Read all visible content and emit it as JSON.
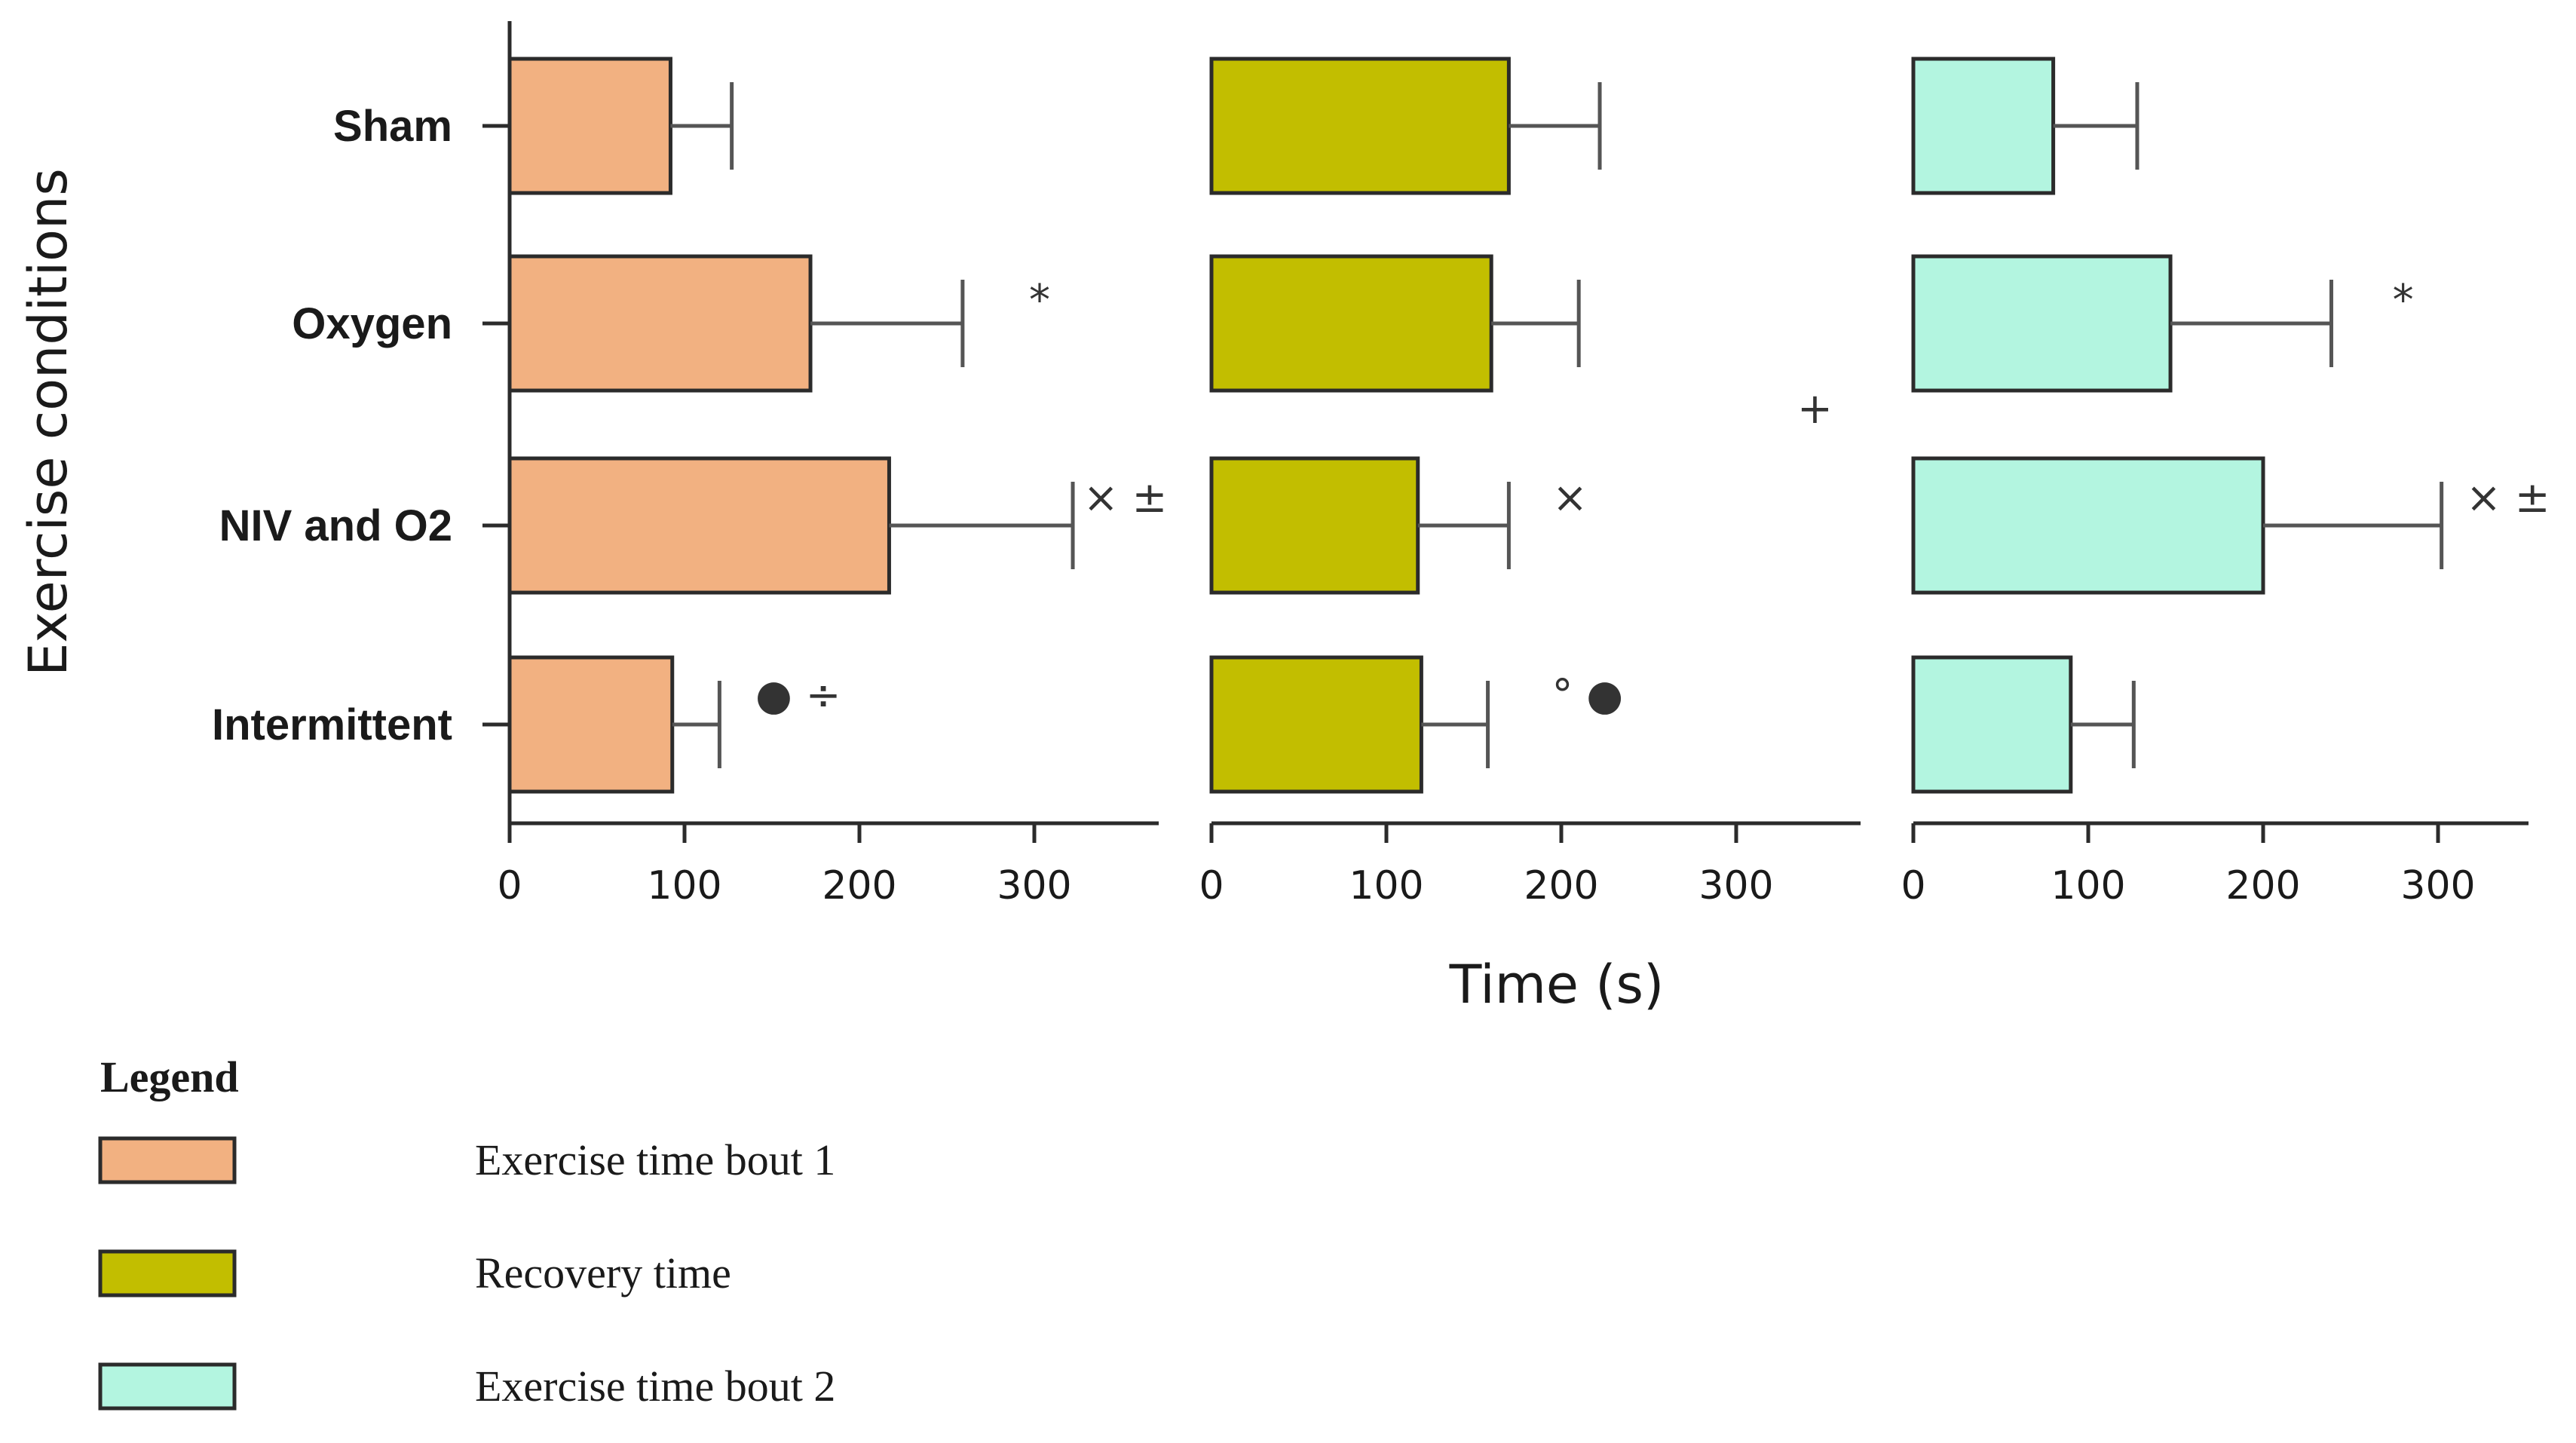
{
  "chart_data": {
    "type": "bar",
    "orientation": "horizontal",
    "categories": [
      "Sham",
      "Oxygen",
      "NIV and O2",
      "Intermittent"
    ],
    "ylabel": "Exercise conditions",
    "xlabel": "Time (s)",
    "xlim": [
      0,
      370
    ],
    "xticks": [
      0,
      100,
      200,
      300
    ],
    "legend_title": "Legend",
    "legend_position": "bottom-left",
    "grid": false,
    "panels": [
      {
        "series_name": "Exercise time bout 1",
        "color": "#F2B181",
        "values": [
          92,
          172,
          217,
          93
        ],
        "errors": [
          35,
          87,
          105,
          27
        ],
        "annotations": [
          {
            "category": 1,
            "x": 303,
            "text": "*"
          },
          {
            "category": 2,
            "x": 352,
            "text": "× ±"
          },
          {
            "category": 3,
            "x": 165,
            "text": "● ÷"
          }
        ]
      },
      {
        "series_name": "Recovery time",
        "color": "#C2BE00",
        "values": [
          170,
          160,
          118,
          120
        ],
        "errors": [
          52,
          50,
          52,
          38
        ],
        "annotations": [
          {
            "category": 2,
            "x": 205,
            "text": "×"
          },
          {
            "category": 3,
            "x": 215,
            "text": "° ●"
          },
          {
            "category": 1.55,
            "x": 345,
            "text": "+"
          }
        ]
      },
      {
        "series_name": "Exercise time bout 2",
        "color": "#B3F5E0",
        "values": [
          80,
          147,
          200,
          90
        ],
        "errors": [
          48,
          92,
          102,
          36
        ],
        "annotations": [
          {
            "category": 1,
            "x": 280,
            "text": "*"
          },
          {
            "category": 2,
            "x": 340,
            "text": "× ±"
          }
        ]
      }
    ]
  }
}
